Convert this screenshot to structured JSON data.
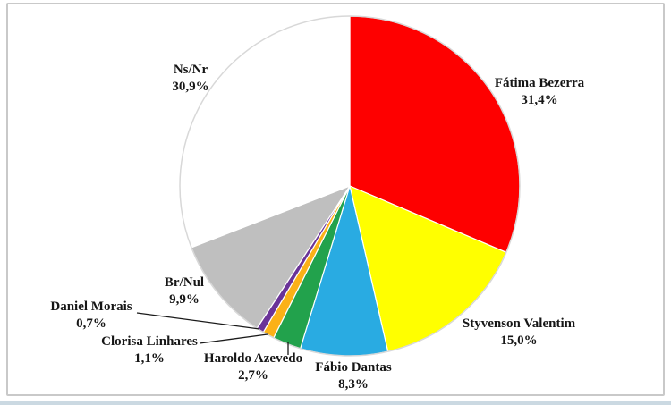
{
  "canvas": {
    "background": "#FFFFFF",
    "frame_border_color": "#C9C9C9",
    "bottom_strip_color": "#CBD9E2"
  },
  "chart_data": {
    "type": "pie",
    "title": "",
    "unit": "%",
    "decimal_separator": ",",
    "direction": "clockwise",
    "start_angle_deg": 0,
    "legend": "none",
    "outline_color": "#D8D8D8",
    "slice_border_color": "#FFFFFF",
    "leader_line_color": "#1A1A1A",
    "label_color": "#161616",
    "slices": [
      {
        "label": "Fátima Bezerra",
        "value": 31.4,
        "display": "31,4%",
        "color": "#FE0000"
      },
      {
        "label": "Styvenson Valentim",
        "value": 15.0,
        "display": "15,0%",
        "color": "#FFFF00"
      },
      {
        "label": "Fábio Dantas",
        "value": 8.3,
        "display": "8,3%",
        "color": "#29ABE2"
      },
      {
        "label": "Haroldo Azevedo",
        "value": 2.7,
        "display": "2,7%",
        "color": "#22A24C"
      },
      {
        "label": "Clorisa Linhares",
        "value": 1.1,
        "display": "1,1%",
        "color": "#FBB117"
      },
      {
        "label": "Daniel Morais",
        "value": 0.7,
        "display": "0,7%",
        "color": "#6A3398"
      },
      {
        "label": "Br/Nul",
        "value": 9.9,
        "display": "9,9%",
        "color": "#BFBFBF"
      },
      {
        "label": "Ns/Nr",
        "value": 30.9,
        "display": "30,9%",
        "color": "#FFFFFF"
      }
    ]
  }
}
